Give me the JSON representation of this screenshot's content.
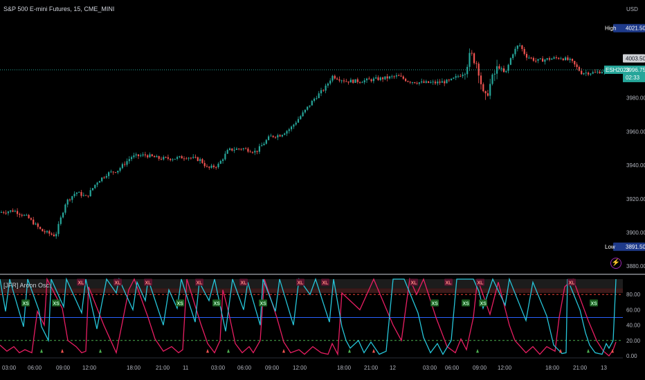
{
  "header": {
    "title": "S&P 500 E-mini Futures, 15, CME_MINI",
    "currency": "USD"
  },
  "indicator": {
    "title": "[JFR] Aroon Osc."
  },
  "colors": {
    "up": "#26a69a",
    "down": "#ef5350",
    "aroon_up": "#26c6da",
    "aroon_down": "#e91e63",
    "mid_line": "#2962ff",
    "top_line": "#f44336",
    "bottom_line": "#4caf50",
    "high_badge": "#1e3a8a",
    "low_badge": "#1e3a8a",
    "last_badge": "#26a69a",
    "prev_badge": "#cfd2d6"
  },
  "price_axis": {
    "ticks": [
      "3880.00",
      "3900.00",
      "3920.00",
      "3940.00",
      "3960.00",
      "3980.00"
    ]
  },
  "osc_axis": {
    "ticks": [
      "0.00",
      "20.00",
      "40.00",
      "60.00",
      "80.00"
    ]
  },
  "time_axis": {
    "ticks": [
      "03:00",
      "06:00",
      "09:00",
      "12:00",
      "18:00",
      "21:00",
      "11",
      "03:00",
      "06:00",
      "09:00",
      "12:00",
      "18:00",
      "21:00",
      "12",
      "03:00",
      "06:00",
      "09:00",
      "12:00",
      "18:00",
      "21:00",
      "13"
    ]
  },
  "badges": {
    "high": {
      "label": "High",
      "value": "4021.50"
    },
    "low": {
      "label": "Low",
      "value": "3891.50"
    },
    "prev": {
      "value": "4003.50"
    },
    "last": {
      "symbol": "ESH2023",
      "value": "3996.75",
      "countdown": "02:33"
    }
  },
  "signals": [
    {
      "label": "XL",
      "x": 117
    },
    {
      "label": "XS",
      "x": 37
    },
    {
      "label": "XS",
      "x": 81
    },
    {
      "label": "XL",
      "x": 170
    },
    {
      "label": "XL",
      "x": 214
    },
    {
      "label": "XS",
      "x": 260
    },
    {
      "label": "XL",
      "x": 288
    },
    {
      "label": "XS",
      "x": 313
    },
    {
      "label": "XL",
      "x": 352
    },
    {
      "label": "XS",
      "x": 380
    },
    {
      "label": "XL",
      "x": 434
    },
    {
      "label": "XL",
      "x": 470
    },
    {
      "label": "XL",
      "x": 598
    },
    {
      "label": "XS",
      "x": 628
    },
    {
      "label": "XL",
      "x": 648
    },
    {
      "label": "XS",
      "x": 673
    },
    {
      "label": "XL",
      "x": 694
    },
    {
      "label": "XS",
      "x": 698
    },
    {
      "label": "XL",
      "x": 826
    },
    {
      "label": "XS",
      "x": 858
    }
  ],
  "chart_data": {
    "type": "candlestick",
    "price_ylim": [
      3878,
      4030
    ],
    "close_path": [
      [
        0,
        3912
      ],
      [
        20,
        3913
      ],
      [
        40,
        3909
      ],
      [
        60,
        3901
      ],
      [
        80,
        3898
      ],
      [
        95,
        3918
      ],
      [
        110,
        3924
      ],
      [
        125,
        3921
      ],
      [
        140,
        3930
      ],
      [
        155,
        3935
      ],
      [
        170,
        3937
      ],
      [
        190,
        3945
      ],
      [
        210,
        3946
      ],
      [
        230,
        3944
      ],
      [
        250,
        3944
      ],
      [
        270,
        3945
      ],
      [
        290,
        3943
      ],
      [
        300,
        3938
      ],
      [
        315,
        3940
      ],
      [
        330,
        3949
      ],
      [
        350,
        3950
      ],
      [
        370,
        3948
      ],
      [
        390,
        3957
      ],
      [
        405,
        3958
      ],
      [
        420,
        3962
      ],
      [
        440,
        3972
      ],
      [
        455,
        3980
      ],
      [
        470,
        3986
      ],
      [
        480,
        3993
      ],
      [
        500,
        3990
      ],
      [
        520,
        3990
      ],
      [
        540,
        3991
      ],
      [
        560,
        3992
      ],
      [
        575,
        3993
      ],
      [
        590,
        3990
      ],
      [
        610,
        3989
      ],
      [
        630,
        3989
      ],
      [
        650,
        3990
      ],
      [
        670,
        3995
      ],
      [
        680,
        4006
      ],
      [
        690,
        4000
      ],
      [
        700,
        3978
      ],
      [
        710,
        3990
      ],
      [
        720,
        3999
      ],
      [
        730,
        3994
      ],
      [
        740,
        4006
      ],
      [
        750,
        4012
      ],
      [
        760,
        4005
      ],
      [
        775,
        4002
      ],
      [
        790,
        4003
      ],
      [
        810,
        4004
      ],
      [
        825,
        4002
      ],
      [
        840,
        3995
      ],
      [
        860,
        3995
      ],
      [
        880,
        3997
      ]
    ],
    "aroon_up": [
      [
        0,
        100
      ],
      [
        8,
        58
      ],
      [
        14,
        100
      ],
      [
        34,
        38
      ],
      [
        40,
        100
      ],
      [
        56,
        60
      ],
      [
        60,
        38
      ],
      [
        70,
        20
      ],
      [
        74,
        100
      ],
      [
        92,
        64
      ],
      [
        96,
        100
      ],
      [
        118,
        56
      ],
      [
        124,
        100
      ],
      [
        140,
        35
      ],
      [
        154,
        100
      ],
      [
        168,
        82
      ],
      [
        172,
        100
      ],
      [
        192,
        60
      ],
      [
        198,
        96
      ],
      [
        210,
        72
      ],
      [
        214,
        100
      ],
      [
        236,
        40
      ],
      [
        244,
        86
      ],
      [
        256,
        62
      ],
      [
        262,
        100
      ],
      [
        282,
        44
      ],
      [
        288,
        96
      ],
      [
        302,
        72
      ],
      [
        310,
        100
      ],
      [
        326,
        32
      ],
      [
        336,
        100
      ],
      [
        352,
        60
      ],
      [
        358,
        96
      ],
      [
        376,
        40
      ],
      [
        380,
        100
      ],
      [
        398,
        58
      ],
      [
        404,
        100
      ],
      [
        424,
        40
      ],
      [
        432,
        100
      ],
      [
        448,
        80
      ],
      [
        456,
        100
      ],
      [
        476,
        44
      ],
      [
        482,
        100
      ],
      [
        494,
        38
      ],
      [
        500,
        20
      ],
      [
        506,
        10
      ],
      [
        518,
        20
      ],
      [
        526,
        4
      ],
      [
        536,
        18
      ],
      [
        548,
        2
      ],
      [
        558,
        6
      ],
      [
        568,
        100
      ],
      [
        584,
        100
      ],
      [
        604,
        56
      ],
      [
        612,
        24
      ],
      [
        622,
        4
      ],
      [
        632,
        16
      ],
      [
        640,
        2
      ],
      [
        652,
        20
      ],
      [
        660,
        100
      ],
      [
        684,
        100
      ],
      [
        692,
        84
      ],
      [
        698,
        62
      ],
      [
        712,
        100
      ],
      [
        730,
        66
      ],
      [
        736,
        100
      ],
      [
        760,
        46
      ],
      [
        770,
        96
      ],
      [
        790,
        52
      ],
      [
        800,
        14
      ],
      [
        812,
        3
      ],
      [
        818,
        4
      ],
      [
        820,
        100
      ],
      [
        838,
        60
      ],
      [
        846,
        30
      ],
      [
        852,
        14
      ],
      [
        860,
        4
      ],
      [
        870,
        2
      ],
      [
        876,
        16
      ],
      [
        880,
        10
      ],
      [
        886,
        20
      ],
      [
        890,
        100
      ]
    ],
    "aroon_down": [
      [
        0,
        14
      ],
      [
        10,
        6
      ],
      [
        20,
        12
      ],
      [
        28,
        4
      ],
      [
        36,
        8
      ],
      [
        46,
        4
      ],
      [
        54,
        58
      ],
      [
        64,
        40
      ],
      [
        68,
        100
      ],
      [
        90,
        62
      ],
      [
        98,
        20
      ],
      [
        110,
        12
      ],
      [
        118,
        4
      ],
      [
        124,
        6
      ],
      [
        128,
        90
      ],
      [
        150,
        40
      ],
      [
        160,
        20
      ],
      [
        168,
        4
      ],
      [
        176,
        40
      ],
      [
        186,
        86
      ],
      [
        194,
        100
      ],
      [
        214,
        50
      ],
      [
        224,
        22
      ],
      [
        236,
        6
      ],
      [
        248,
        12
      ],
      [
        258,
        4
      ],
      [
        264,
        8
      ],
      [
        270,
        100
      ],
      [
        290,
        42
      ],
      [
        300,
        16
      ],
      [
        310,
        4
      ],
      [
        318,
        20
      ],
      [
        322,
        86
      ],
      [
        330,
        58
      ],
      [
        340,
        16
      ],
      [
        350,
        4
      ],
      [
        360,
        12
      ],
      [
        366,
        4
      ],
      [
        376,
        20
      ],
      [
        382,
        100
      ],
      [
        400,
        50
      ],
      [
        410,
        18
      ],
      [
        420,
        4
      ],
      [
        432,
        8
      ],
      [
        440,
        2
      ],
      [
        452,
        12
      ],
      [
        464,
        4
      ],
      [
        474,
        2
      ],
      [
        480,
        16
      ],
      [
        488,
        2
      ],
      [
        494,
        82
      ],
      [
        520,
        60
      ],
      [
        540,
        100
      ],
      [
        568,
        40
      ],
      [
        580,
        20
      ],
      [
        592,
        100
      ],
      [
        602,
        80
      ],
      [
        612,
        100
      ],
      [
        630,
        50
      ],
      [
        646,
        12
      ],
      [
        658,
        4
      ],
      [
        666,
        22
      ],
      [
        674,
        8
      ],
      [
        684,
        50
      ],
      [
        690,
        100
      ],
      [
        708,
        54
      ],
      [
        720,
        96
      ],
      [
        736,
        40
      ],
      [
        744,
        20
      ],
      [
        760,
        4
      ],
      [
        770,
        12
      ],
      [
        780,
        2
      ],
      [
        790,
        12
      ],
      [
        802,
        6
      ],
      [
        808,
        50
      ],
      [
        816,
        90
      ],
      [
        828,
        100
      ],
      [
        850,
        46
      ],
      [
        862,
        20
      ],
      [
        872,
        6
      ],
      [
        880,
        0
      ],
      [
        886,
        8
      ],
      [
        890,
        18
      ]
    ],
    "levels": {
      "top": 80,
      "mid": 50,
      "bottom": 20
    }
  }
}
